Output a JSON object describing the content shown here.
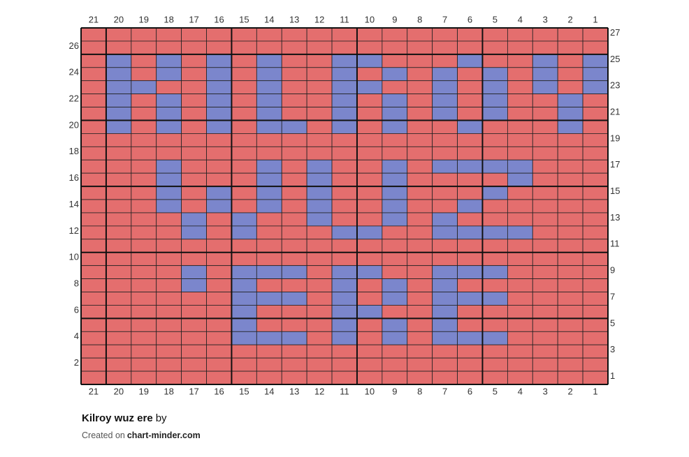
{
  "grid": {
    "columns": [
      21,
      20,
      19,
      18,
      17,
      16,
      15,
      14,
      13,
      12,
      11,
      10,
      9,
      8,
      7,
      6,
      5,
      4,
      3,
      2,
      1
    ],
    "rows": [
      27,
      26,
      25,
      24,
      23,
      22,
      21,
      20,
      19,
      18,
      17,
      16,
      15,
      14,
      13,
      12,
      11,
      10,
      9,
      8,
      7,
      6,
      5,
      4,
      3,
      2,
      1
    ],
    "colors": [
      "#e46e6e",
      "#7b86cc"
    ],
    "cells": [
      [
        0,
        0,
        0,
        0,
        0,
        0,
        0,
        0,
        0,
        0,
        0,
        0,
        0,
        0,
        0,
        0,
        0,
        0,
        0,
        0,
        0
      ],
      [
        0,
        0,
        0,
        0,
        0,
        0,
        0,
        0,
        0,
        0,
        0,
        0,
        0,
        0,
        0,
        0,
        0,
        0,
        0,
        0,
        0
      ],
      [
        0,
        1,
        0,
        1,
        0,
        1,
        0,
        1,
        0,
        0,
        1,
        1,
        0,
        0,
        0,
        1,
        0,
        0,
        1,
        0,
        1
      ],
      [
        0,
        1,
        0,
        1,
        0,
        1,
        0,
        1,
        0,
        0,
        1,
        0,
        1,
        0,
        1,
        0,
        1,
        0,
        1,
        0,
        1
      ],
      [
        0,
        1,
        1,
        0,
        0,
        1,
        0,
        1,
        0,
        0,
        1,
        1,
        0,
        0,
        1,
        0,
        1,
        0,
        1,
        0,
        1
      ],
      [
        0,
        1,
        0,
        1,
        0,
        1,
        0,
        1,
        0,
        0,
        1,
        0,
        1,
        0,
        1,
        0,
        1,
        0,
        0,
        1,
        0
      ],
      [
        0,
        1,
        0,
        1,
        0,
        1,
        0,
        1,
        0,
        0,
        1,
        0,
        1,
        0,
        1,
        0,
        1,
        0,
        0,
        1,
        0
      ],
      [
        0,
        1,
        0,
        1,
        0,
        1,
        0,
        1,
        1,
        0,
        1,
        0,
        1,
        0,
        0,
        1,
        0,
        0,
        0,
        1,
        0
      ],
      [
        0,
        0,
        0,
        0,
        0,
        0,
        0,
        0,
        0,
        0,
        0,
        0,
        0,
        0,
        0,
        0,
        0,
        0,
        0,
        0,
        0
      ],
      [
        0,
        0,
        0,
        0,
        0,
        0,
        0,
        0,
        0,
        0,
        0,
        0,
        0,
        0,
        0,
        0,
        0,
        0,
        0,
        0,
        0
      ],
      [
        0,
        0,
        0,
        1,
        0,
        0,
        0,
        1,
        0,
        1,
        0,
        0,
        1,
        0,
        1,
        1,
        1,
        1,
        0,
        0,
        0
      ],
      [
        0,
        0,
        0,
        1,
        0,
        0,
        0,
        1,
        0,
        1,
        0,
        0,
        1,
        0,
        0,
        0,
        0,
        1,
        0,
        0,
        0
      ],
      [
        0,
        0,
        0,
        1,
        0,
        1,
        0,
        1,
        0,
        1,
        0,
        0,
        1,
        0,
        0,
        0,
        1,
        0,
        0,
        0,
        0
      ],
      [
        0,
        0,
        0,
        1,
        0,
        1,
        0,
        1,
        0,
        1,
        0,
        0,
        1,
        0,
        0,
        1,
        0,
        0,
        0,
        0,
        0
      ],
      [
        0,
        0,
        0,
        0,
        1,
        0,
        1,
        0,
        0,
        1,
        0,
        0,
        1,
        0,
        1,
        0,
        0,
        0,
        0,
        0,
        0
      ],
      [
        0,
        0,
        0,
        0,
        1,
        0,
        1,
        0,
        0,
        0,
        1,
        1,
        0,
        0,
        1,
        1,
        1,
        1,
        0,
        0,
        0
      ],
      [
        0,
        0,
        0,
        0,
        0,
        0,
        0,
        0,
        0,
        0,
        0,
        0,
        0,
        0,
        0,
        0,
        0,
        0,
        0,
        0,
        0
      ],
      [
        0,
        0,
        0,
        0,
        0,
        0,
        0,
        0,
        0,
        0,
        0,
        0,
        0,
        0,
        0,
        0,
        0,
        0,
        0,
        0,
        0
      ],
      [
        0,
        0,
        0,
        0,
        1,
        0,
        1,
        1,
        1,
        0,
        1,
        1,
        0,
        0,
        1,
        1,
        1,
        0,
        0,
        0,
        0
      ],
      [
        0,
        0,
        0,
        0,
        1,
        0,
        1,
        0,
        0,
        0,
        1,
        0,
        1,
        0,
        1,
        0,
        0,
        0,
        0,
        0,
        0
      ],
      [
        0,
        0,
        0,
        0,
        0,
        0,
        1,
        1,
        1,
        0,
        1,
        0,
        1,
        0,
        1,
        1,
        1,
        0,
        0,
        0,
        0
      ],
      [
        0,
        0,
        0,
        0,
        0,
        0,
        1,
        0,
        0,
        0,
        1,
        1,
        0,
        0,
        1,
        0,
        0,
        0,
        0,
        0,
        0
      ],
      [
        0,
        0,
        0,
        0,
        0,
        0,
        1,
        0,
        0,
        0,
        1,
        0,
        1,
        0,
        1,
        0,
        0,
        0,
        0,
        0,
        0
      ],
      [
        0,
        0,
        0,
        0,
        0,
        0,
        1,
        1,
        1,
        0,
        1,
        0,
        1,
        0,
        1,
        1,
        1,
        0,
        0,
        0,
        0
      ],
      [
        0,
        0,
        0,
        0,
        0,
        0,
        0,
        0,
        0,
        0,
        0,
        0,
        0,
        0,
        0,
        0,
        0,
        0,
        0,
        0,
        0
      ],
      [
        0,
        0,
        0,
        0,
        0,
        0,
        0,
        0,
        0,
        0,
        0,
        0,
        0,
        0,
        0,
        0,
        0,
        0,
        0,
        0,
        0
      ],
      [
        0,
        0,
        0,
        0,
        0,
        0,
        0,
        0,
        0,
        0,
        0,
        0,
        0,
        0,
        0,
        0,
        0,
        0,
        0,
        0,
        0
      ]
    ]
  },
  "footer": {
    "title": "Kilroy wuz ere",
    "by": "by",
    "created_on": "Created on",
    "site": "chart-minder.com"
  }
}
